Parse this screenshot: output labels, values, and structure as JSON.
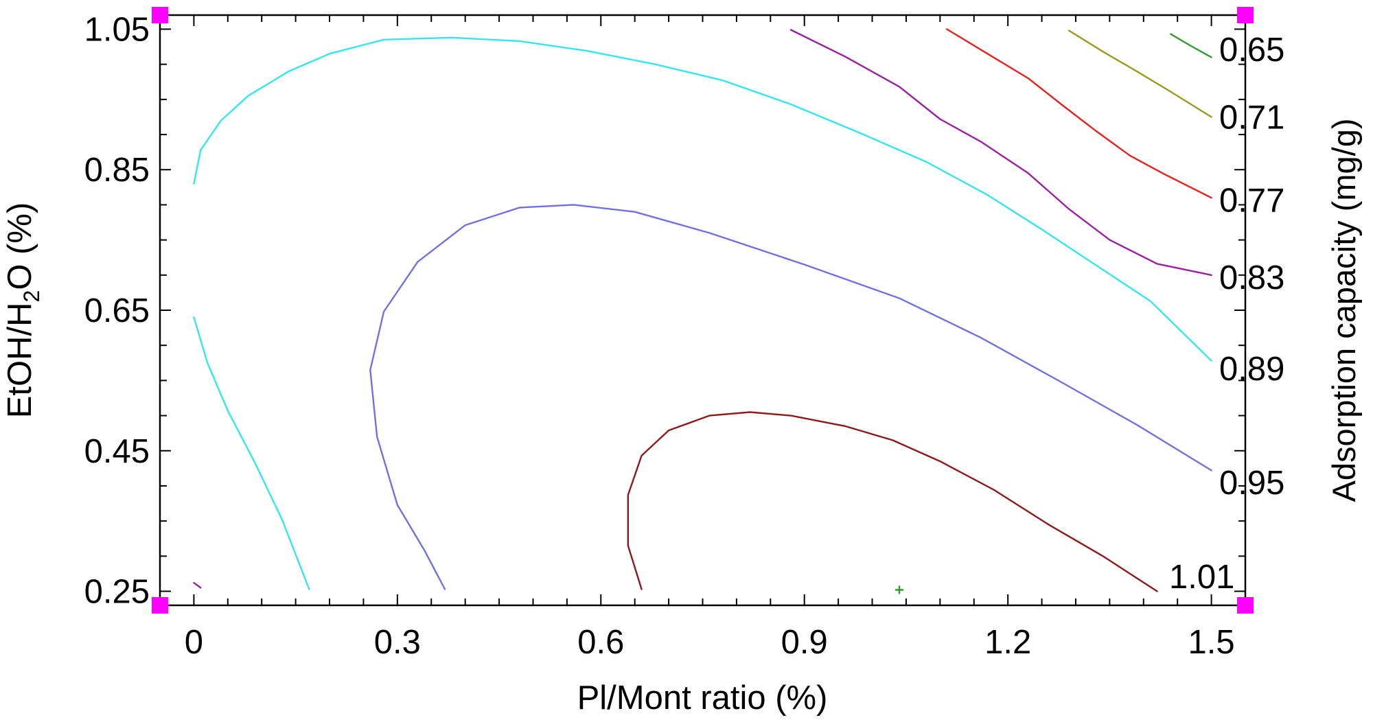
{
  "chart_data": {
    "type": "contour",
    "xlabel": "Pl/Mont ratio (%)",
    "ylabel_parts": [
      "EtOH/H",
      "2",
      "O (%)"
    ],
    "zlabel": "Adsorption capacity (mg/g)",
    "xlim": [
      -0.05,
      1.55
    ],
    "ylim": [
      0.23,
      1.07
    ],
    "xticks": [
      0,
      0.3,
      0.6,
      0.9,
      1.2,
      1.5
    ],
    "xtick_labels": [
      "0",
      "0.3",
      "0.6",
      "0.9",
      "1.2",
      "1.5"
    ],
    "yticks": [
      0.25,
      0.45,
      0.65,
      0.85,
      1.05
    ],
    "ytick_labels": [
      "0.25",
      "0.45",
      "0.65",
      "0.85",
      "1.05"
    ],
    "grid": false,
    "contours": [
      {
        "level": "0.65",
        "color": "#2e9a2e",
        "points": [
          [
            1.44,
            1.043
          ],
          [
            1.47,
            1.026
          ],
          [
            1.5,
            1.01
          ]
        ]
      },
      {
        "level": "0.71",
        "color": "#9a9a1f",
        "points": [
          [
            1.29,
            1.048
          ],
          [
            1.34,
            1.018
          ],
          [
            1.39,
            0.99
          ],
          [
            1.44,
            0.961
          ],
          [
            1.5,
            0.925
          ]
        ]
      },
      {
        "level": "0.77",
        "color": "#e8201c",
        "points": [
          [
            1.11,
            1.05
          ],
          [
            1.17,
            1.015
          ],
          [
            1.23,
            0.98
          ],
          [
            1.28,
            0.942
          ],
          [
            1.33,
            0.905
          ],
          [
            1.38,
            0.87
          ],
          [
            1.43,
            0.844
          ],
          [
            1.5,
            0.81
          ]
        ]
      },
      {
        "level": "0.83",
        "color": "#9a20a0",
        "points": [
          [
            0.88,
            1.049
          ],
          [
            0.96,
            1.011
          ],
          [
            1.04,
            0.968
          ],
          [
            1.1,
            0.922
          ],
          [
            1.16,
            0.89
          ],
          [
            1.23,
            0.845
          ],
          [
            1.29,
            0.794
          ],
          [
            1.35,
            0.75
          ],
          [
            1.42,
            0.716
          ],
          [
            1.5,
            0.7
          ]
        ]
      },
      {
        "level": "0.89",
        "color": "#33e6ee",
        "points": [
          [
            0.0,
            0.83
          ],
          [
            0.01,
            0.878
          ],
          [
            0.04,
            0.92
          ],
          [
            0.08,
            0.955
          ],
          [
            0.14,
            0.99
          ],
          [
            0.2,
            1.015
          ],
          [
            0.28,
            1.035
          ],
          [
            0.38,
            1.038
          ],
          [
            0.48,
            1.033
          ],
          [
            0.58,
            1.019
          ],
          [
            0.68,
            1.0
          ],
          [
            0.78,
            0.977
          ],
          [
            0.88,
            0.943
          ],
          [
            0.98,
            0.903
          ],
          [
            1.08,
            0.861
          ],
          [
            1.17,
            0.814
          ],
          [
            1.25,
            0.765
          ],
          [
            1.33,
            0.714
          ],
          [
            1.41,
            0.663
          ],
          [
            1.5,
            0.578
          ]
        ]
      },
      {
        "level": "0.89",
        "color": "#33e6ee",
        "points": [
          [
            0.0,
            0.64
          ],
          [
            0.02,
            0.575
          ],
          [
            0.05,
            0.507
          ],
          [
            0.09,
            0.433
          ],
          [
            0.13,
            0.352
          ],
          [
            0.17,
            0.253
          ]
        ]
      },
      {
        "level": "0.95",
        "color": "#7070e0",
        "points": [
          [
            0.37,
            0.253
          ],
          [
            0.34,
            0.308
          ],
          [
            0.3,
            0.373
          ],
          [
            0.27,
            0.47
          ],
          [
            0.26,
            0.565
          ],
          [
            0.28,
            0.648
          ],
          [
            0.33,
            0.719
          ],
          [
            0.4,
            0.771
          ],
          [
            0.48,
            0.796
          ],
          [
            0.56,
            0.8
          ],
          [
            0.65,
            0.79
          ],
          [
            0.76,
            0.76
          ],
          [
            0.9,
            0.715
          ],
          [
            1.04,
            0.667
          ],
          [
            1.16,
            0.611
          ],
          [
            1.28,
            0.547
          ],
          [
            1.39,
            0.487
          ],
          [
            1.5,
            0.422
          ]
        ]
      },
      {
        "level": "1.01",
        "color": "#8b1a1a",
        "points": [
          [
            0.66,
            0.253
          ],
          [
            0.64,
            0.315
          ],
          [
            0.64,
            0.387
          ],
          [
            0.66,
            0.443
          ],
          [
            0.7,
            0.479
          ],
          [
            0.76,
            0.5
          ],
          [
            0.82,
            0.505
          ],
          [
            0.88,
            0.5
          ],
          [
            0.96,
            0.485
          ],
          [
            1.03,
            0.465
          ],
          [
            1.1,
            0.435
          ],
          [
            1.18,
            0.394
          ],
          [
            1.26,
            0.345
          ],
          [
            1.34,
            0.3
          ],
          [
            1.42,
            0.25
          ]
        ]
      },
      {
        "level": "",
        "color": "#9a20a0",
        "points": [
          [
            0.0,
            0.262
          ],
          [
            0.01,
            0.255
          ]
        ]
      }
    ],
    "contour_labels": [
      {
        "text": "0.65",
        "y": 1.021
      },
      {
        "text": "0.71",
        "y": 0.925
      },
      {
        "text": "0.77",
        "y": 0.807
      },
      {
        "text": "0.83",
        "y": 0.697
      },
      {
        "text": "0.89",
        "y": 0.567
      },
      {
        "text": "0.95",
        "y": 0.405
      },
      {
        "text": "1.01",
        "y": 0.271
      }
    ],
    "design_point": {
      "x": 1.04,
      "y": 0.252,
      "color": "#2e9a2e"
    },
    "corner_marker_color": "#ff00ff"
  }
}
